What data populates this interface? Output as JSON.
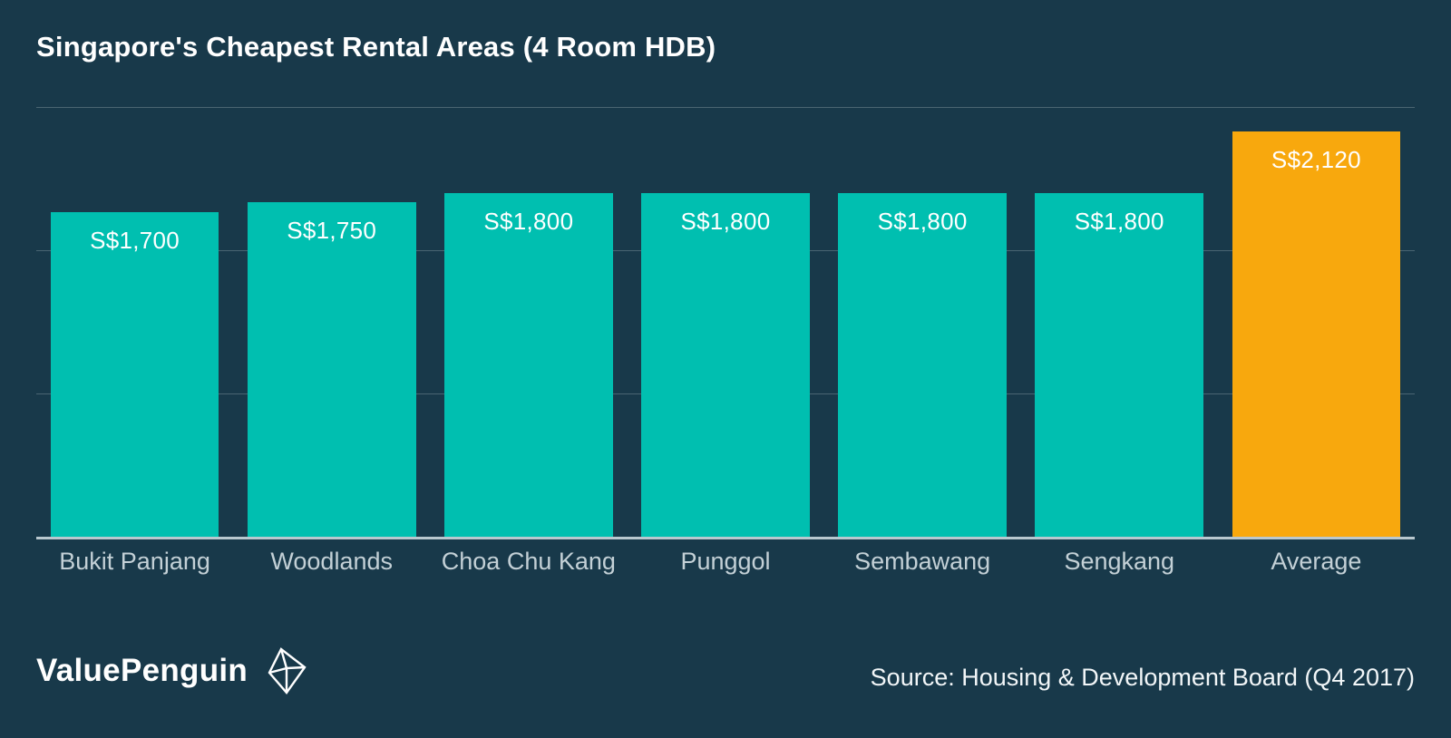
{
  "title": "Singapore's Cheapest Rental Areas (4 Room HDB)",
  "brand": "ValuePenguin",
  "source": "Source: Housing & Development Board (Q4 2017)",
  "colors": {
    "background": "#18394A",
    "bar": "#00BFB0",
    "highlight": "#F8A80D",
    "grid": "#4A6572",
    "baseline": "#B9C8CF",
    "category_label": "#C3D0D6",
    "value_label": "#FFFFFF"
  },
  "chart_data": {
    "type": "bar",
    "title": "Singapore's Cheapest Rental Areas (4 Room HDB)",
    "categories": [
      "Bukit Panjang",
      "Woodlands",
      "Choa Chu Kang",
      "Punggol",
      "Sembawang",
      "Sengkang",
      "Average"
    ],
    "values": [
      1700,
      1750,
      1800,
      1800,
      1800,
      1800,
      2120
    ],
    "value_labels": [
      "S$1,700",
      "S$1,750",
      "S$1,800",
      "S$1,800",
      "S$1,800",
      "S$1,800",
      "S$2,120"
    ],
    "highlight_index": 6,
    "highlight_category": "Average",
    "xlabel": "",
    "ylabel": "",
    "ylim": [
      0,
      2250
    ],
    "gridlines": [
      750,
      1500,
      2250
    ],
    "grid": "horizontal",
    "legend": "none",
    "value_label_position": "inside-top",
    "currency": "S$"
  }
}
